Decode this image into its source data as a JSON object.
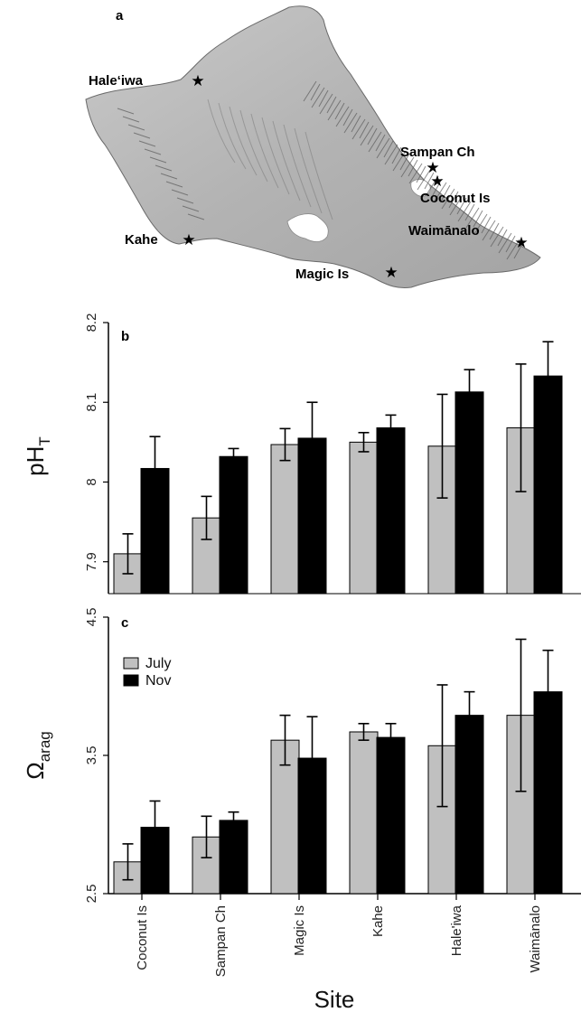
{
  "panel_labels": {
    "a": "a",
    "b": "b",
    "c": "c"
  },
  "map": {
    "sites": [
      {
        "name": "Hale‘iwa",
        "star": "star-icon"
      },
      {
        "name": "Sampan Ch",
        "star": "star-icon"
      },
      {
        "name": "Coconut Is",
        "star": "star-icon"
      },
      {
        "name": "Waimānalo",
        "star": "star-icon"
      },
      {
        "name": "Kahe",
        "star": "star-icon"
      },
      {
        "name": "Magic Is",
        "star": "star-icon"
      }
    ],
    "land_color": "#a9a9a9",
    "ridge_color": "#5b5b5b"
  },
  "chart_data": [
    {
      "type": "bar",
      "panel": "b",
      "ylabel": "pH",
      "ylabel_sub": "T",
      "ylim": [
        7.86,
        8.2
      ],
      "yticks": [
        "7.9",
        "8",
        "8.1",
        "8.2"
      ],
      "ytick_values": [
        7.9,
        8.0,
        8.1,
        8.2
      ],
      "categories": [
        "Coconut Is",
        "Sampan Ch",
        "Magic Is",
        "Kahe",
        "Hale'iwa",
        "Waimānalo"
      ],
      "series": [
        {
          "name": "July",
          "color": "#c0c0c0",
          "values": [
            7.91,
            7.955,
            8.047,
            8.05,
            8.045,
            8.068
          ],
          "err": [
            0.025,
            0.027,
            0.02,
            0.012,
            0.065,
            0.08
          ]
        },
        {
          "name": "Nov",
          "color": "#000000",
          "values": [
            8.017,
            8.032,
            8.055,
            8.068,
            8.113,
            8.133
          ],
          "err": [
            0.04,
            0.01,
            0.045,
            0.016,
            0.028,
            0.043
          ]
        }
      ]
    },
    {
      "type": "bar",
      "panel": "c",
      "ylabel": "Ω",
      "ylabel_sub": "arag",
      "xlabel": "Site",
      "ylim": [
        2.5,
        4.5
      ],
      "yticks": [
        "2.5",
        "3.5",
        "4.5"
      ],
      "ytick_values": [
        2.5,
        3.5,
        4.5
      ],
      "categories": [
        "Coconut Is",
        "Sampan Ch",
        "Magic Is",
        "Kahe",
        "Hale'iwa",
        "Waimānalo"
      ],
      "legend": {
        "position": "top-left",
        "entries": [
          "July",
          "Nov"
        ]
      },
      "series": [
        {
          "name": "July",
          "color": "#c0c0c0",
          "values": [
            2.73,
            2.91,
            3.61,
            3.67,
            3.57,
            3.79
          ],
          "err": [
            0.13,
            0.15,
            0.18,
            0.06,
            0.44,
            0.55
          ]
        },
        {
          "name": "Nov",
          "color": "#000000",
          "values": [
            2.98,
            3.03,
            3.48,
            3.63,
            3.79,
            3.96
          ],
          "err": [
            0.19,
            0.06,
            0.3,
            0.1,
            0.17,
            0.3
          ]
        }
      ]
    }
  ]
}
